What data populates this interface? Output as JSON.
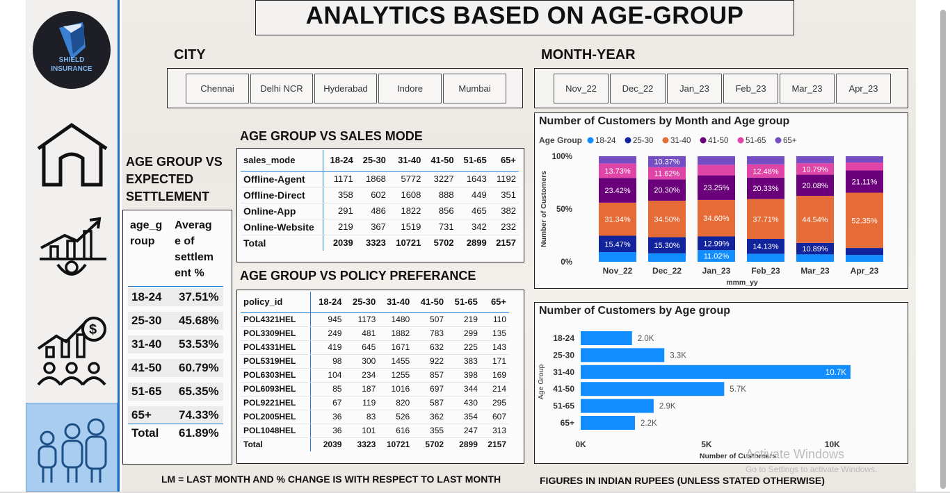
{
  "header": {
    "title": "ANALYTICS BASED ON AGE-GROUP"
  },
  "logo": {
    "line1": "SHIELD",
    "line2": "INSURANCE"
  },
  "sidebar": {
    "items": [
      {
        "icon": "home-icon"
      },
      {
        "icon": "growth-chart-icon"
      },
      {
        "icon": "sales-growth-icon"
      },
      {
        "icon": "people-icon",
        "active": true
      }
    ]
  },
  "city": {
    "heading": "CITY",
    "options": [
      "Chennai",
      "Delhi NCR",
      "Hyderabad",
      "Indore",
      "Mumbai"
    ]
  },
  "month_year": {
    "heading": "MONTH-YEAR",
    "options": [
      "Nov_22",
      "Dec_22",
      "Jan_23",
      "Feb_23",
      "Mar_23",
      "Apr_23"
    ]
  },
  "settlement": {
    "heading_lines": [
      "AGE GROUP VS",
      "EXPECTED",
      "SETTLEMENT"
    ],
    "col1_lines": [
      "age_g",
      "roup"
    ],
    "col2_lines": [
      "Averag",
      "e of",
      "settlem",
      "ent %"
    ],
    "rows": [
      {
        "age": "18-24",
        "value": "37.51%"
      },
      {
        "age": "25-30",
        "value": "45.68%"
      },
      {
        "age": "31-40",
        "value": "53.53%"
      },
      {
        "age": "41-50",
        "value": "60.79%"
      },
      {
        "age": "51-65",
        "value": "65.35%"
      },
      {
        "age": "65+",
        "value": "74.33%"
      }
    ],
    "total_label": "Total",
    "total_value": "61.89%"
  },
  "sales_mode": {
    "heading": "AGE GROUP VS SALES MODE",
    "columns": [
      "sales_mode",
      "18-24",
      "25-30",
      "31-40",
      "41-50",
      "51-65",
      "65+"
    ],
    "rows": [
      [
        "Offline-Agent",
        "1171",
        "1868",
        "5772",
        "3227",
        "1643",
        "1192"
      ],
      [
        "Offline-Direct",
        "358",
        "602",
        "1608",
        "888",
        "449",
        "351"
      ],
      [
        "Online-App",
        "291",
        "486",
        "1822",
        "856",
        "465",
        "382"
      ],
      [
        "Online-Website",
        "219",
        "367",
        "1519",
        "731",
        "342",
        "232"
      ]
    ],
    "total": [
      "Total",
      "2039",
      "3323",
      "10721",
      "5702",
      "2899",
      "2157"
    ]
  },
  "policy": {
    "heading": "AGE GROUP VS POLICY PREFERANCE",
    "columns": [
      "policy_id",
      "18-24",
      "25-30",
      "31-40",
      "41-50",
      "51-65",
      "65+"
    ],
    "rows": [
      [
        "POL4321HEL",
        "945",
        "1173",
        "1480",
        "507",
        "219",
        "110"
      ],
      [
        "POL3309HEL",
        "249",
        "481",
        "1882",
        "783",
        "299",
        "135"
      ],
      [
        "POL4331HEL",
        "419",
        "645",
        "1671",
        "632",
        "225",
        "143"
      ],
      [
        "POL5319HEL",
        "98",
        "300",
        "1455",
        "922",
        "383",
        "171"
      ],
      [
        "POL6303HEL",
        "104",
        "234",
        "1255",
        "857",
        "398",
        "169"
      ],
      [
        "POL6093HEL",
        "85",
        "187",
        "1016",
        "697",
        "344",
        "214"
      ],
      [
        "POL9221HEL",
        "67",
        "119",
        "820",
        "587",
        "430",
        "295"
      ],
      [
        "POL2005HEL",
        "36",
        "83",
        "526",
        "362",
        "354",
        "607"
      ],
      [
        "POL1048HEL",
        "36",
        "101",
        "616",
        "355",
        "247",
        "313"
      ]
    ],
    "total": [
      "Total",
      "2039",
      "3323",
      "10721",
      "5702",
      "2899",
      "2157"
    ]
  },
  "chart_data": [
    {
      "type": "bar",
      "stacked": "100%",
      "title": "Number of Customers by Month and Age group",
      "legend_title": "Age Group",
      "legend_position": "top-left",
      "xlabel": "mmm_yy",
      "ylabel": "Number of Customers",
      "yticks": [
        "0%",
        "50%",
        "100%"
      ],
      "ylim": [
        0,
        100
      ],
      "categories": [
        "Nov_22",
        "Dec_22",
        "Jan_23",
        "Feb_23",
        "Mar_23",
        "Apr_23"
      ],
      "series": [
        {
          "name": "18-24",
          "color": "#118dff",
          "values": [
            9.2,
            8.0,
            11.02,
            7.6,
            7.0,
            6.4
          ],
          "labels": [
            "",
            "",
            "11.02%",
            "",
            "",
            ""
          ]
        },
        {
          "name": "25-30",
          "color": "#12239e",
          "values": [
            15.47,
            15.3,
            12.99,
            14.13,
            10.89,
            6.7
          ],
          "labels": [
            "15.47%",
            "15.30%",
            "12.99%",
            "14.13%",
            "10.89%",
            ""
          ]
        },
        {
          "name": "31-40",
          "color": "#e66c37",
          "values": [
            31.34,
            34.5,
            34.6,
            37.71,
            44.54,
            52.35
          ],
          "labels": [
            "31.34%",
            "34.50%",
            "34.60%",
            "37.71%",
            "44.54%",
            "52.35%"
          ]
        },
        {
          "name": "41-50",
          "color": "#6b007b",
          "values": [
            23.42,
            20.3,
            23.25,
            20.33,
            20.08,
            21.11
          ],
          "labels": [
            "23.42%",
            "20.30%",
            "23.25%",
            "20.33%",
            "20.08%",
            "21.11%"
          ]
        },
        {
          "name": "51-65",
          "color": "#e044a7",
          "values": [
            13.73,
            11.62,
            10.0,
            12.48,
            10.79,
            7.5
          ],
          "labels": [
            "13.73%",
            "11.62%",
            "",
            "12.48%",
            "10.79%",
            ""
          ]
        },
        {
          "name": "65+",
          "color": "#744ec2",
          "values": [
            6.84,
            10.37,
            8.14,
            7.75,
            6.7,
            5.94
          ],
          "labels": [
            "",
            "10.37%",
            "",
            "",
            "",
            ""
          ]
        }
      ]
    },
    {
      "type": "bar",
      "orientation": "horizontal",
      "title": "Number of Customers by Age group",
      "xlabel": "Number of Customers",
      "ylabel": "Age Group",
      "xticks": [
        "0K",
        "5K",
        "10K"
      ],
      "xlim": [
        0,
        11000
      ],
      "categories": [
        "18-24",
        "25-30",
        "31-40",
        "41-50",
        "51-65",
        "65+"
      ],
      "values": [
        2039,
        3323,
        10721,
        5702,
        2899,
        2157
      ],
      "labels": [
        "2.0K",
        "3.3K",
        "10.7K",
        "5.7K",
        "2.9K",
        "2.2K"
      ],
      "color": "#118dff"
    }
  ],
  "footnotes": {
    "left": "LM = LAST MONTH AND % CHANGE IS WITH RESPECT TO LAST MONTH",
    "right": "FIGURES IN INDIAN RUPEES (UNLESS STATED OTHERWISE)"
  },
  "watermark": {
    "line1": "Activate Windows",
    "line2": "Go to Settings to activate Windows."
  }
}
